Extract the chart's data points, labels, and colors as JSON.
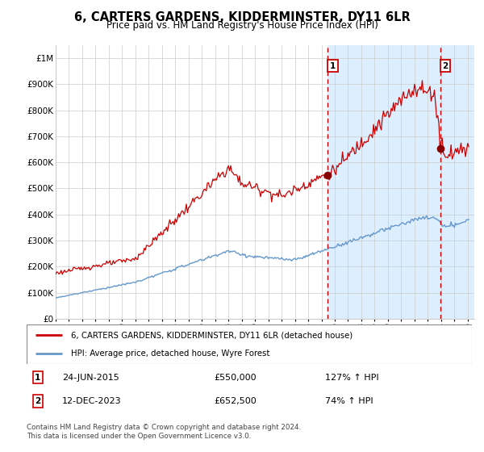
{
  "title": "6, CARTERS GARDENS, KIDDERMINSTER, DY11 6LR",
  "subtitle": "Price paid vs. HM Land Registry's House Price Index (HPI)",
  "ylabel_ticks": [
    "£0",
    "£100K",
    "£200K",
    "£300K",
    "£400K",
    "£500K",
    "£600K",
    "£700K",
    "£800K",
    "£900K",
    "£1M"
  ],
  "ytick_values": [
    0,
    100000,
    200000,
    300000,
    400000,
    500000,
    600000,
    700000,
    800000,
    900000,
    1000000
  ],
  "ylim": [
    0,
    1050000
  ],
  "xlim_start": 1995.0,
  "xlim_end": 2026.5,
  "marker1_date": 2015.48,
  "marker1_price": 550000,
  "marker1_label": "24-JUN-2015",
  "marker1_price_str": "£550,000",
  "marker1_hpi": "127% ↑ HPI",
  "marker2_date": 2023.95,
  "marker2_price": 652500,
  "marker2_label": "12-DEC-2023",
  "marker2_price_str": "£652,500",
  "marker2_hpi": "74% ↑ HPI",
  "legend_line1": "6, CARTERS GARDENS, KIDDERMINSTER, DY11 6LR (detached house)",
  "legend_line2": "HPI: Average price, detached house, Wyre Forest",
  "footnote": "Contains HM Land Registry data © Crown copyright and database right 2024.\nThis data is licensed under the Open Government Licence v3.0.",
  "line_color_red": "#cc0000",
  "line_color_blue": "#6699cc",
  "shading_color": "#ddeeff",
  "hatch_color": "#aabbcc",
  "grid_color": "#cccccc",
  "background_color": "#ffffff"
}
